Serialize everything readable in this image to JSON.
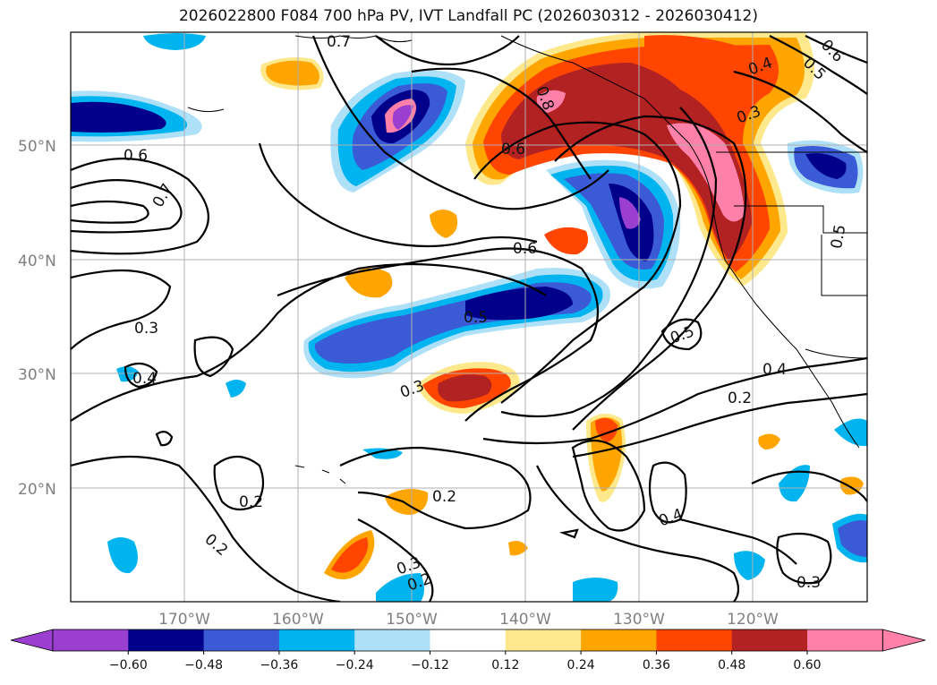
{
  "title": "2026022800 F084 700 hPa PV, IVT Landfall PC (2026030312 - 2026030412)",
  "lat_labels": [
    "50°N",
    "40°N",
    "30°N",
    "20°N"
  ],
  "lon_labels": [
    "170°W",
    "160°W",
    "150°W",
    "140°W",
    "130°W",
    "120°W"
  ],
  "contour_labels": [
    "0.6",
    "0.7",
    "0.3",
    "0.4",
    "0.7",
    "0.8",
    "0.6",
    "0.6",
    "0.5",
    "0.3",
    "0.5",
    "0.4",
    "0.2",
    "0.2",
    "0.2",
    "0.2",
    "0.3",
    "0.2",
    "0.4",
    "0.3",
    "0.4",
    "0.5",
    "0.6",
    "0.5"
  ],
  "colorbar": {
    "ticks": [
      "−0.60",
      "−0.48",
      "−0.36",
      "−0.24",
      "−0.12",
      "0.12",
      "0.24",
      "0.36",
      "0.48",
      "0.60"
    ],
    "colors": [
      "#9a3fd0",
      "#00008b",
      "#3b5bd6",
      "#00b4f0",
      "#aee0f8",
      "#ffffff",
      "#fde98b",
      "#ffa500",
      "#ff4500",
      "#b22222",
      "#ff80a8",
      "#ff80a8"
    ]
  }
}
